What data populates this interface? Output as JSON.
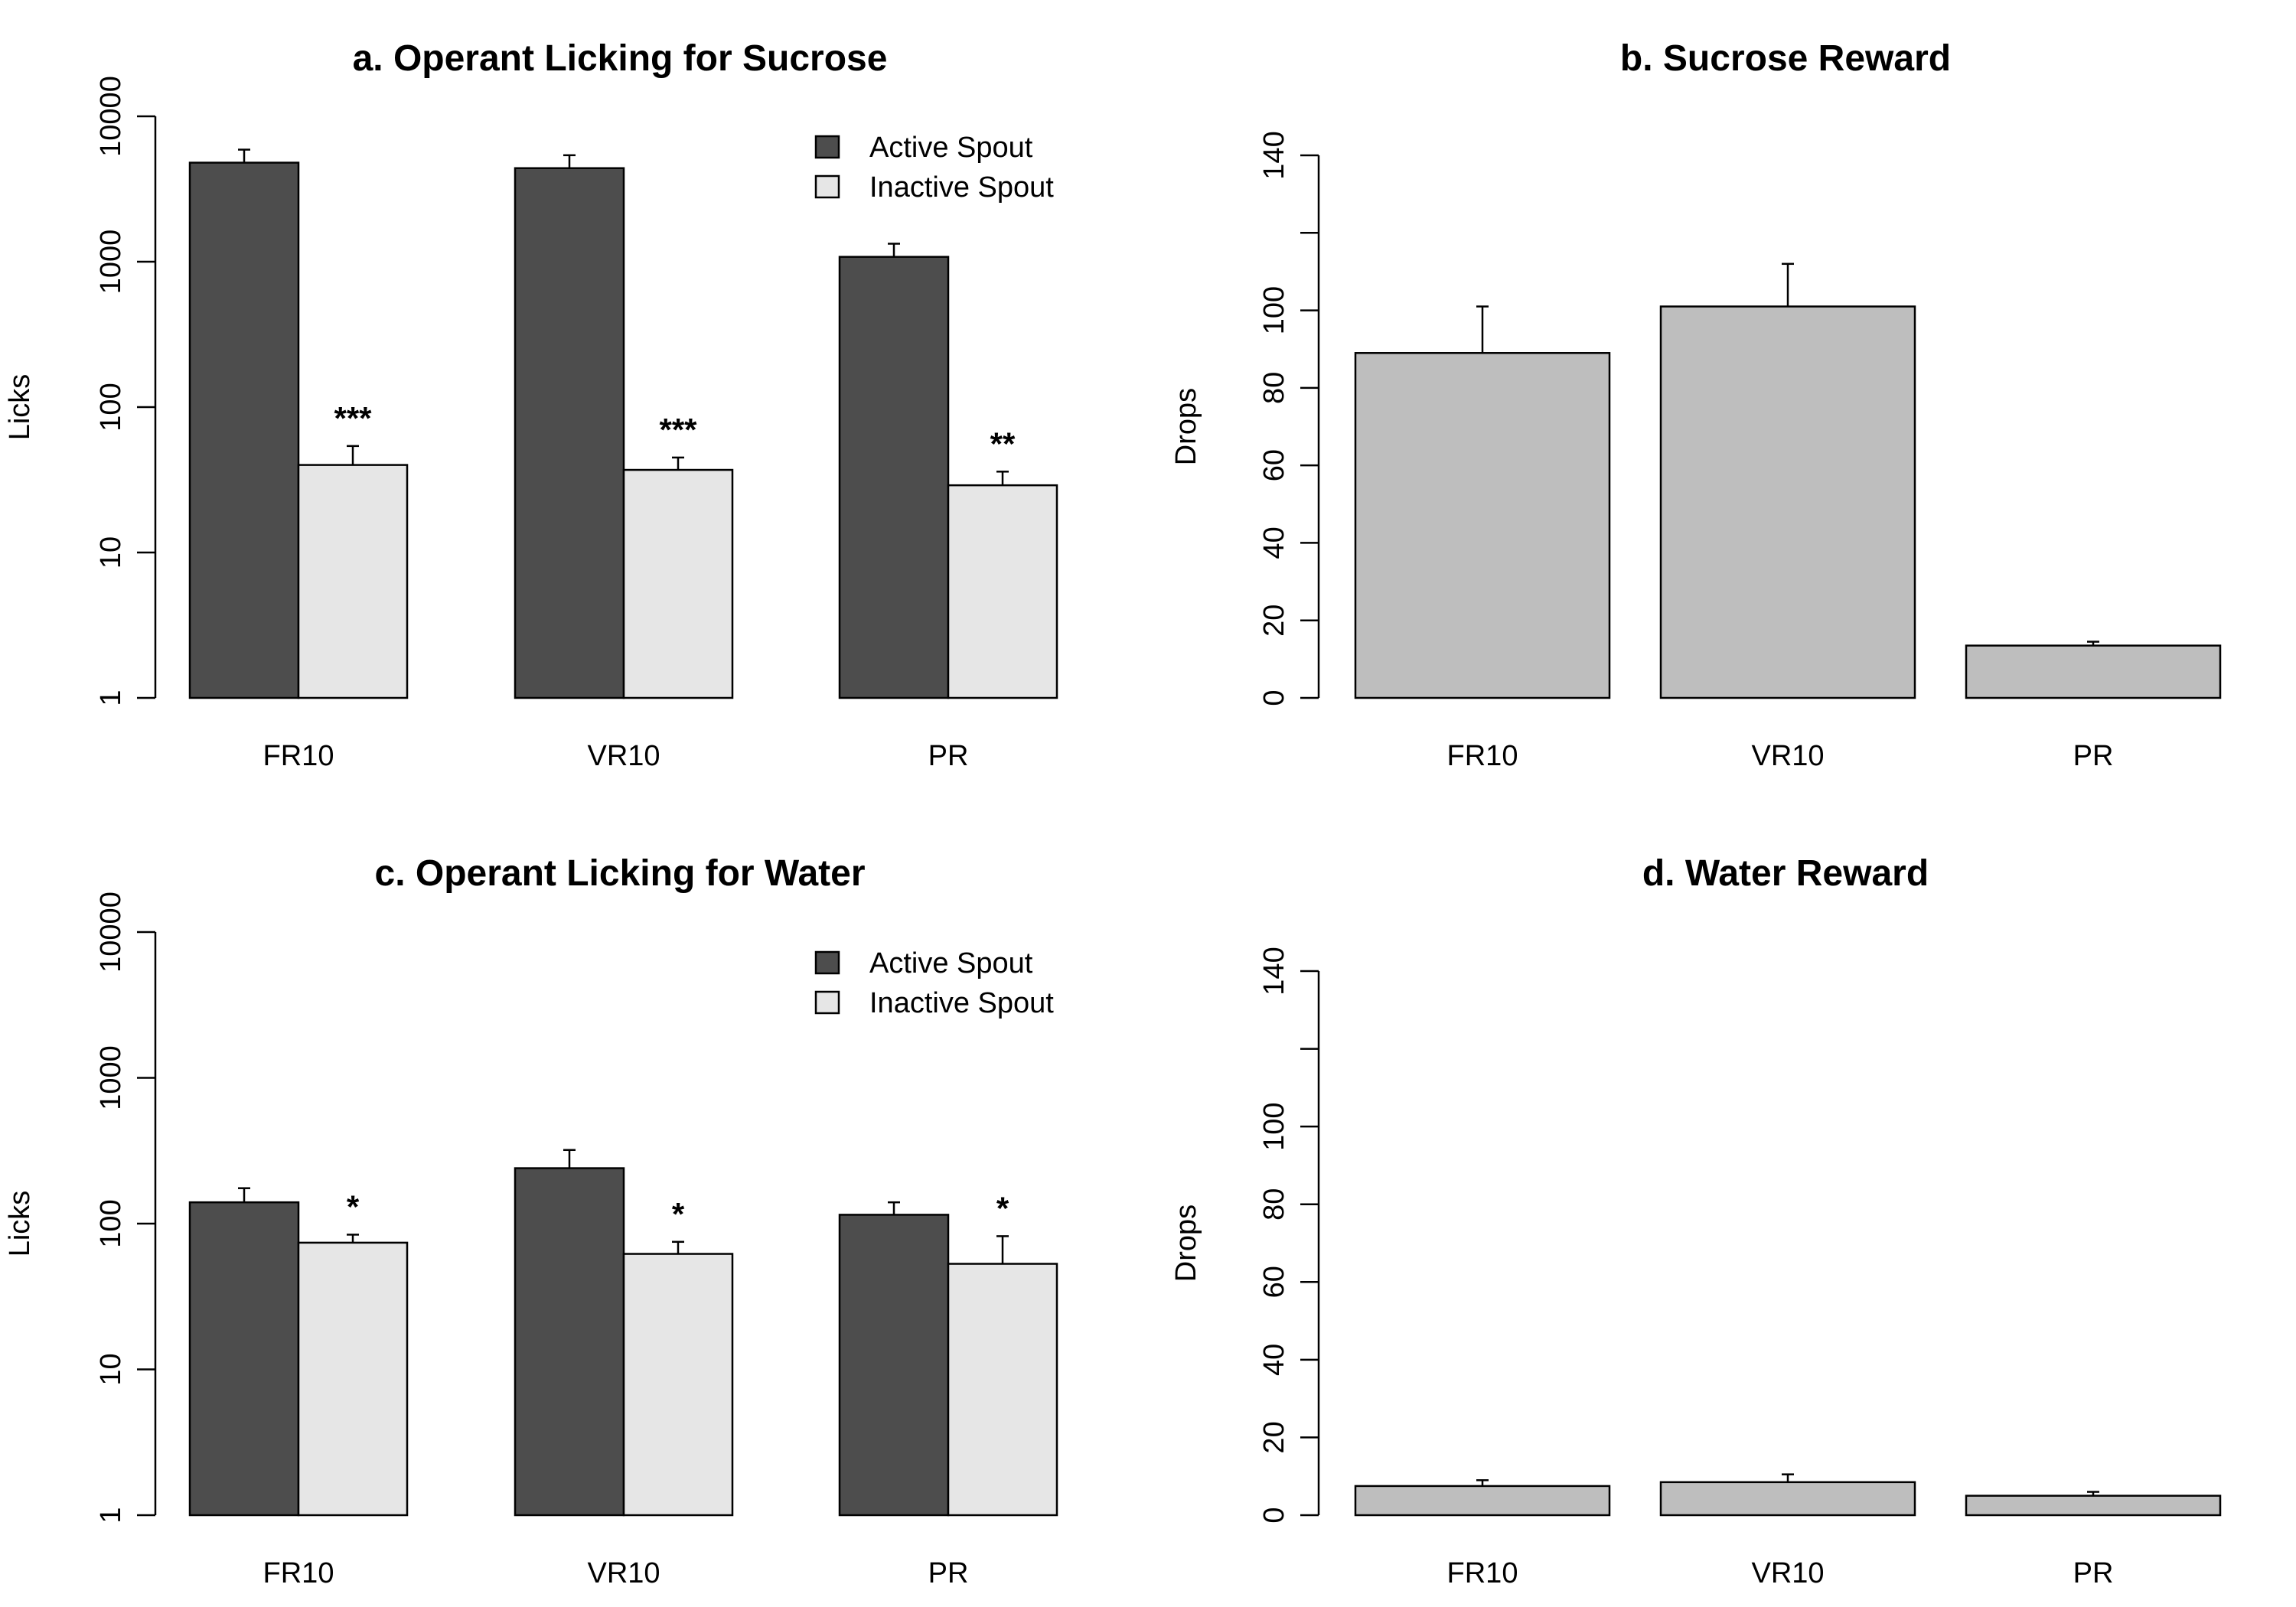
{
  "chart_data": [
    {
      "id": "a",
      "type": "bar",
      "title": "a. Operant Licking for Sucrose",
      "ylabel": "Licks",
      "scale": "log",
      "ylim": [
        1,
        10000
      ],
      "yticks": [
        "1",
        "10",
        "100",
        "1000",
        "10000"
      ],
      "categories": [
        "FR10",
        "VR10",
        "PR"
      ],
      "series": [
        {
          "name": "Active Spout",
          "color": "#4d4d4d",
          "values": [
            4800,
            4400,
            1080
          ],
          "err": [
            5900,
            5400,
            1330
          ]
        },
        {
          "name": "Inactive Spout",
          "color": "#e6e6e6",
          "values": [
            40,
            37,
            29
          ],
          "err": [
            54,
            45,
            36
          ]
        }
      ],
      "annotations": [
        "***",
        "***",
        "**"
      ],
      "legend": "top-right"
    },
    {
      "id": "b",
      "type": "bar",
      "title": "b. Sucrose Reward",
      "ylabel": "Drops",
      "scale": "linear",
      "ylim": [
        0,
        140
      ],
      "yticks": [
        0,
        20,
        40,
        60,
        80,
        100,
        120,
        140
      ],
      "ytick_labels": [
        "0",
        "20",
        "40",
        "60",
        "80",
        "100",
        "",
        "140"
      ],
      "categories": [
        "FR10",
        "VR10",
        "PR"
      ],
      "series": [
        {
          "color": "#bebebe",
          "values": [
            89,
            101,
            13.5
          ],
          "err": [
            101,
            112,
            14.5
          ]
        }
      ]
    },
    {
      "id": "c",
      "type": "bar",
      "title": "c. Operant Licking for Water",
      "ylabel": "Licks",
      "scale": "log",
      "ylim": [
        1,
        10000
      ],
      "yticks": [
        "1",
        "10",
        "100",
        "1000",
        "10000"
      ],
      "categories": [
        "FR10",
        "VR10",
        "PR"
      ],
      "series": [
        {
          "name": "Active Spout",
          "color": "#4d4d4d",
          "values": [
            140,
            240,
            115
          ],
          "err": [
            175,
            320,
            140
          ]
        },
        {
          "name": "Inactive Spout",
          "color": "#e6e6e6",
          "values": [
            74,
            62,
            53
          ],
          "err": [
            84,
            75,
            82
          ]
        }
      ],
      "annotations": [
        "*",
        "*",
        "*"
      ],
      "legend": "top-right"
    },
    {
      "id": "d",
      "type": "bar",
      "title": "d. Water Reward",
      "ylabel": "Drops",
      "scale": "linear",
      "ylim": [
        0,
        140
      ],
      "yticks": [
        0,
        20,
        40,
        60,
        80,
        100,
        120,
        140
      ],
      "ytick_labels": [
        "0",
        "20",
        "40",
        "60",
        "80",
        "100",
        "",
        "140"
      ],
      "categories": [
        "FR10",
        "VR10",
        "PR"
      ],
      "series": [
        {
          "color": "#bebebe",
          "values": [
            7.5,
            8.5,
            5
          ],
          "err": [
            9,
            10.5,
            6
          ]
        }
      ]
    }
  ]
}
